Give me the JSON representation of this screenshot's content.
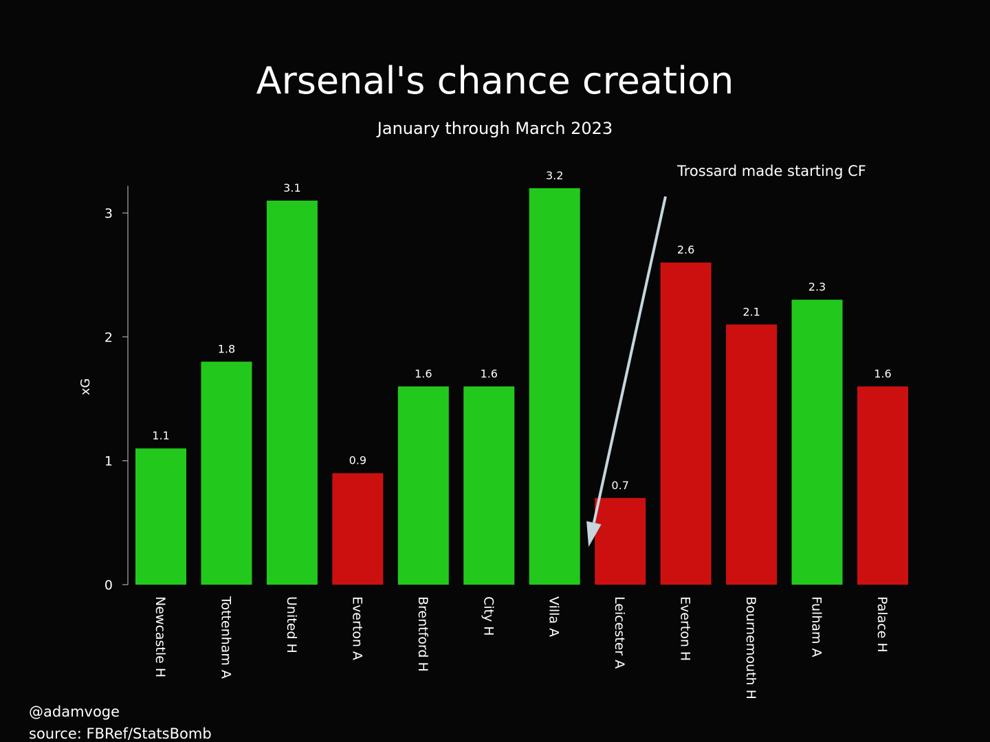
{
  "chart_data": {
    "type": "bar",
    "title": "Arsenal's chance creation",
    "subtitle": "January through March 2023",
    "ylabel": "xG",
    "xlabel": "",
    "ylim": [
      0,
      3.2
    ],
    "yticks": [
      0,
      1,
      2,
      3
    ],
    "categories": [
      "Newcastle H",
      "Tottenham A",
      "United H",
      "Everton A",
      "Brentford H",
      "City H",
      "Villa A",
      "Leicester A",
      "Everton H",
      "Bournemouth H",
      "Fulham A",
      "Palace H"
    ],
    "values": [
      1.1,
      1.8,
      3.1,
      0.9,
      1.6,
      1.6,
      3.2,
      0.7,
      2.6,
      2.1,
      2.3,
      1.6
    ],
    "value_labels": [
      "1.1",
      "1.8",
      "3.1",
      "0.9",
      "1.6",
      "1.6",
      "3.2",
      "0.7",
      "2.6",
      "2.1",
      "2.3",
      "1.6"
    ],
    "bar_colors": [
      "#22c91c",
      "#22c91c",
      "#22c91c",
      "#cc1010",
      "#22c91c",
      "#22c91c",
      "#22c91c",
      "#cc1010",
      "#cc1010",
      "#cc1010",
      "#22c91c",
      "#cc1010"
    ],
    "annotation": {
      "text": "Trossard made starting CF",
      "arrow_target_category": "Leicester A",
      "arrow_color": "#c5d6de"
    },
    "grid": false,
    "legend": "none"
  },
  "footer": {
    "credit": "@adamvoge",
    "source": "source: FBRef/StatsBomb"
  },
  "colors": {
    "background": "#060606",
    "text": "#ffffff",
    "axis": "#aaaaaa"
  }
}
